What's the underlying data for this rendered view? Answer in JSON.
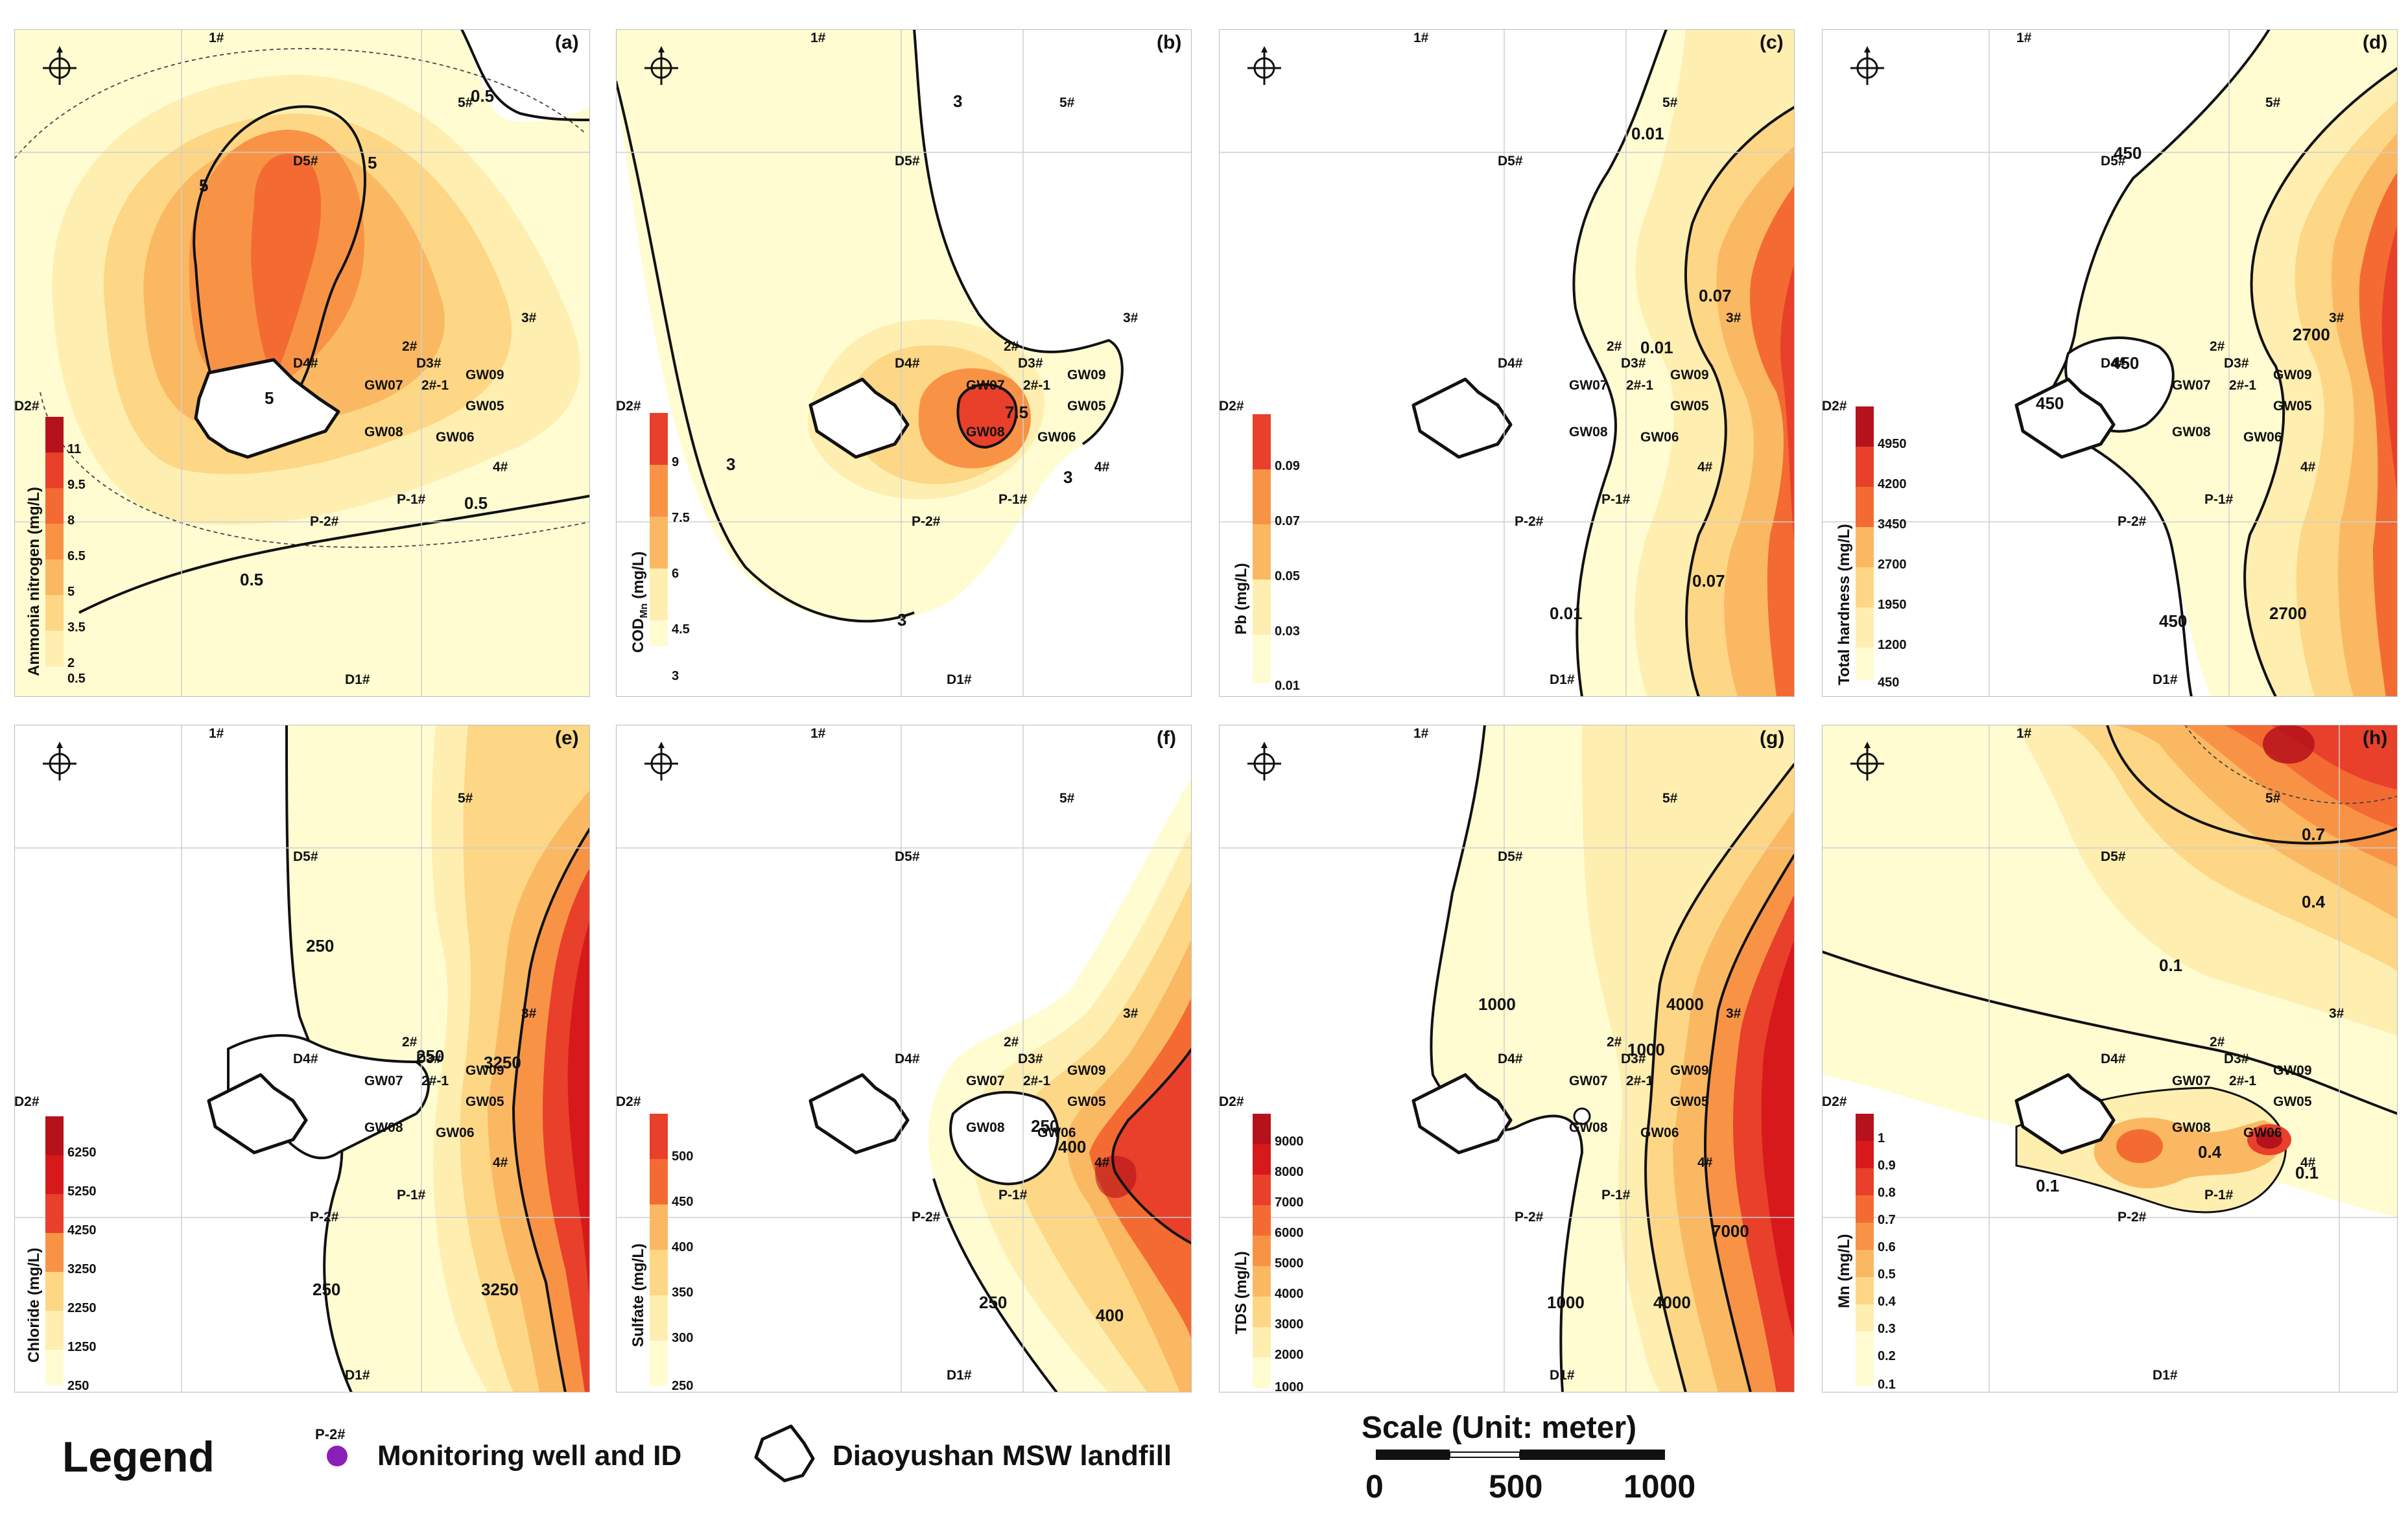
{
  "figure": {
    "panels": [
      {
        "id": "a",
        "label": "(a)",
        "parameter": "Ammonia nitrogen (mg/L)",
        "ticks": [
          "11",
          "9.5",
          "8",
          "6.5",
          "5",
          "3.5",
          "2",
          "0.5"
        ],
        "contour_labels": [
          "0.5",
          "5",
          "5",
          "5",
          "0.5",
          "0.5"
        ]
      },
      {
        "id": "b",
        "label": "(b)",
        "parameter_main": "COD",
        "parameter_sub": "Mn",
        "parameter_unit": " (mg/L)",
        "ticks": [
          "9",
          "7.5",
          "6",
          "4.5",
          "3"
        ],
        "contour_labels": [
          "3",
          "3",
          "3",
          "3",
          "7.5"
        ]
      },
      {
        "id": "c",
        "label": "(c)",
        "parameter": "Pb (mg/L)",
        "ticks": [
          "0.09",
          "0.07",
          "0.05",
          "0.03",
          "0.01"
        ],
        "contour_labels": [
          "0.01",
          "0.07",
          "0.01",
          "0.07",
          "0.01"
        ]
      },
      {
        "id": "d",
        "label": "(d)",
        "parameter": "Total hardness (mg/L)",
        "ticks": [
          "4950",
          "4200",
          "3450",
          "2700",
          "1950",
          "1200",
          "450"
        ],
        "contour_labels": [
          "450",
          "2700",
          "450",
          "450",
          "450",
          "2700"
        ]
      },
      {
        "id": "e",
        "label": "(e)",
        "parameter": "Chloride (mg/L)",
        "ticks": [
          "6250",
          "5250",
          "4250",
          "3250",
          "2250",
          "1250",
          "250"
        ],
        "contour_labels": [
          "250",
          "3250",
          "250",
          "250",
          "3250"
        ]
      },
      {
        "id": "f",
        "label": "(f)",
        "parameter": "Sulfate (mg/L)",
        "ticks": [
          "500",
          "450",
          "400",
          "350",
          "300",
          "250"
        ],
        "contour_labels": [
          "250",
          "400",
          "250",
          "400"
        ]
      },
      {
        "id": "g",
        "label": "(g)",
        "parameter": "TDS (mg/L)",
        "ticks": [
          "9000",
          "8000",
          "7000",
          "6000",
          "5000",
          "4000",
          "3000",
          "2000",
          "1000"
        ],
        "contour_labels": [
          "1000",
          "4000",
          "1000",
          "1000",
          "4000",
          "7000"
        ]
      },
      {
        "id": "h",
        "label": "(h)",
        "parameter": "Mn (mg/L)",
        "ticks": [
          "1",
          "0.9",
          "0.8",
          "0.7",
          "0.6",
          "0.5",
          "0.4",
          "0.3",
          "0.2",
          "0.1"
        ],
        "contour_labels": [
          "0.7",
          "0.4",
          "0.1",
          "0.1",
          "0.1",
          "0.4"
        ]
      }
    ],
    "wells": [
      "1#",
      "5#",
      "D5#",
      "3#",
      "2#",
      "D3#",
      "D4#",
      "GW07",
      "2#-1",
      "GW09",
      "GW05",
      "D2#",
      "GW08",
      "GW06",
      "4#",
      "P-1#",
      "P-2#",
      "D1#"
    ],
    "colors": {
      "c0": "#fffcd2",
      "c1": "#feeeb0",
      "c2": "#fdd785",
      "c3": "#fbb862",
      "c4": "#f89346",
      "c5": "#f36b32",
      "c6": "#e8402a",
      "c7": "#d7191c",
      "c8": "#b5121b",
      "c9": "#8f0c1b"
    },
    "icon": "north-arrow-compass-icon"
  },
  "legend": {
    "title": "Legend",
    "well_sample_id": "P-2#",
    "well_text": "Monitoring well and ID",
    "landfill_text": "Diaoyushan MSW landfill",
    "scale_title": "Scale (Unit: meter)",
    "scale_ticks": [
      "0",
      "500",
      "1000"
    ]
  }
}
